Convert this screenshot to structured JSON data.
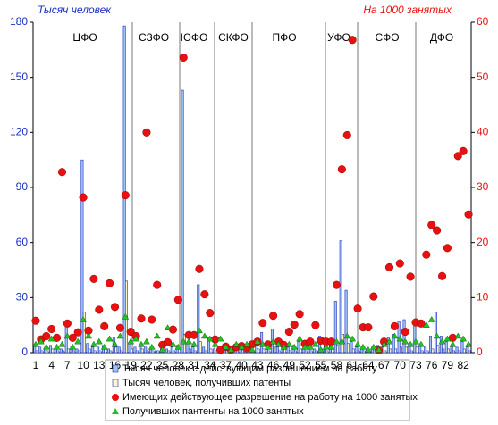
{
  "chart_data": {
    "type": "combo",
    "y_label": "Тысяч человек",
    "y2_label": "На 1000 занятых",
    "annotations": [
      "ЦФО",
      "СЗФО",
      "ЮФО",
      "СКФО",
      "ПФО",
      "УФО",
      "СФО",
      "ДФО"
    ],
    "categories": [
      "1",
      null,
      null,
      "4",
      null,
      null,
      "7",
      null,
      null,
      "10",
      null,
      null,
      "13",
      null,
      null,
      "16",
      null,
      null,
      "19",
      null,
      null,
      "22",
      null,
      null,
      "25",
      null,
      null,
      "28",
      null,
      null,
      "31",
      null,
      null,
      "34",
      null,
      null,
      "37",
      null,
      null,
      "40",
      null,
      null,
      "43",
      null,
      null,
      "46",
      null,
      null,
      "49",
      null,
      null,
      "52",
      null,
      null,
      "55",
      null,
      null,
      "58",
      null,
      null,
      "61",
      null,
      null,
      "64",
      null,
      null,
      "67",
      null,
      null,
      "70",
      null,
      null,
      "73",
      null,
      null,
      "76",
      null,
      null,
      "79",
      null,
      null,
      "82",
      null
    ],
    "ylim": [
      0,
      180
    ],
    "yticks": [
      0,
      30,
      60,
      90,
      120,
      150,
      180
    ],
    "y2lim": [
      0,
      60
    ],
    "y2ticks": [
      0,
      10,
      20,
      30,
      40,
      50,
      60
    ],
    "series": [
      {
        "name": "Тысяч человек с действующим разрешением на работу",
        "type": "bar",
        "color": "#9fc3f5",
        "values": [
          4,
          3,
          2,
          4,
          3,
          2,
          17,
          3,
          2,
          105,
          5,
          3,
          3,
          4,
          2,
          8,
          3,
          178,
          5,
          3,
          4,
          3,
          2,
          1,
          2,
          2,
          3,
          4,
          143,
          5,
          3,
          37,
          3,
          8,
          2,
          1,
          1,
          1,
          1,
          2,
          1,
          2,
          5,
          11,
          4,
          13,
          3,
          5,
          3,
          4,
          6,
          4,
          3,
          2,
          9,
          4,
          5,
          28,
          61,
          34,
          6,
          3,
          2,
          2,
          3,
          4,
          3,
          8,
          10,
          17,
          18,
          5,
          18,
          4,
          3,
          9,
          22,
          9,
          6,
          4,
          3,
          6,
          3
        ]
      },
      {
        "name": "Тысяч человек, получивших патенты",
        "type": "bar",
        "color": "#fdf7c0",
        "values": [
          1,
          1,
          1,
          2,
          1,
          1,
          2,
          1,
          1,
          22,
          2,
          1,
          1,
          2,
          1,
          3,
          1,
          39,
          2,
          1,
          2,
          1,
          1,
          1,
          1,
          1,
          1,
          2,
          10,
          2,
          1,
          6,
          1,
          2,
          1,
          1,
          1,
          1,
          1,
          1,
          1,
          1,
          2,
          2,
          1,
          3,
          1,
          2,
          1,
          1,
          2,
          1,
          1,
          1,
          2,
          1,
          2,
          4,
          10,
          5,
          2,
          1,
          1,
          1,
          1,
          1,
          1,
          2,
          2,
          3,
          3,
          1,
          3,
          1,
          1,
          2,
          4,
          2,
          2,
          1,
          1,
          2,
          1
        ]
      },
      {
        "name": "Имеющих действующее разрешение на работу на 1000 занятых",
        "type": "scatter",
        "axis": "y2",
        "color": "#e81010",
        "marker": "circle",
        "values": [
          5.8,
          2.4,
          3,
          4.3,
          2.7,
          32.8,
          5.3,
          2.7,
          3.7,
          28.2,
          4,
          13.4,
          7.8,
          4.8,
          12.6,
          8.3,
          4.5,
          28.6,
          3.8,
          3,
          6.2,
          40,
          6,
          12.3,
          1.4,
          1.9,
          4.2,
          9.6,
          53.6,
          3.2,
          3.2,
          15.2,
          10.6,
          7.2,
          2.4,
          0.5,
          1.1,
          0.5,
          1,
          1.2,
          0.8,
          1.5,
          2,
          5.4,
          1.5,
          6.7,
          2,
          1.4,
          3.8,
          5.1,
          7,
          1.6,
          2,
          5,
          2.2,
          2,
          2,
          12.3,
          33.3,
          39.5,
          56.8,
          8,
          4.6,
          4.6,
          10.2,
          0.4,
          2,
          15.5,
          4.8,
          16.2,
          3.8,
          13.8,
          5.5,
          5.3,
          17.8,
          23.2,
          22.2,
          13.9,
          19,
          2.7,
          35.7,
          36.6,
          25.1
        ]
      },
      {
        "name": "Получивших пантенты на 1000 занятых",
        "type": "scatter",
        "axis": "y2",
        "color": "#22c322",
        "marker": "triangle",
        "values": [
          1.5,
          2,
          1,
          2.5,
          1,
          1.5,
          3,
          1,
          2,
          6,
          3,
          1.5,
          2,
          1,
          2.5,
          1.5,
          3,
          6.5,
          2,
          2.5,
          1.5,
          2,
          1,
          3,
          0.5,
          4.5,
          1.5,
          1,
          2,
          2,
          1.5,
          4,
          3,
          2.5,
          1.5,
          2.5,
          1,
          0.5,
          1.5,
          1,
          1.5,
          0.5,
          2,
          1.5,
          1,
          2,
          1.5,
          1,
          1.5,
          1,
          2.5,
          1,
          1,
          1.5,
          0.5,
          1,
          1,
          2,
          2,
          3,
          2.5,
          1.5,
          1,
          0.5,
          1,
          0.5,
          1.5,
          2,
          3,
          2.5,
          2,
          1.5,
          2,
          1.5,
          5,
          6,
          3,
          2,
          2.5,
          1.5,
          3,
          2.5,
          1.5
        ]
      }
    ]
  }
}
